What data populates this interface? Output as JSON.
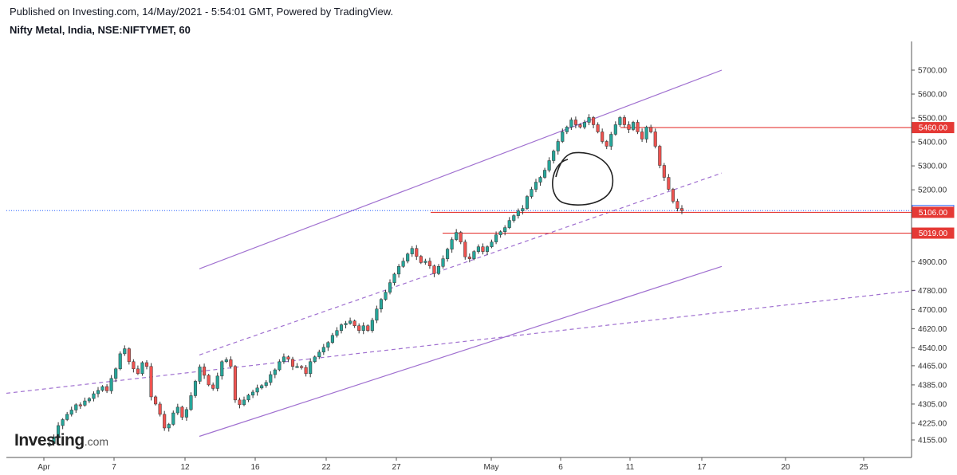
{
  "header": {
    "published": "Published on Investing.com, 14/May/2021 - 5:54:01 GMT, Powered by TradingView.",
    "symbol": "Nifty Metal, India, NSE:NIFTYMET, 60"
  },
  "logo": {
    "main": "Investing",
    "suffix": ".com"
  },
  "colors": {
    "up": "#26a69a",
    "down": "#ef5350",
    "channel": "#a070d0",
    "level": "#e53935",
    "last": "#2962ff"
  },
  "chart_data": {
    "type": "candlestick",
    "title": "Nifty Metal, India, NSE:NIFTYMET, 60",
    "x_ticks": [
      "Apr",
      "7",
      "12",
      "16",
      "22",
      "27",
      "May",
      "6",
      "11",
      "17",
      "20",
      "25"
    ],
    "y_ticks": [
      "5700.00",
      "5600.00",
      "5500.00",
      "5400.00",
      "5300.00",
      "5200.00",
      "4900.00",
      "4780.00",
      "4700.00",
      "4620.00",
      "4540.00",
      "4465.00",
      "4385.00",
      "4305.00",
      "4225.00",
      "4155.00"
    ],
    "price_tags": [
      {
        "label": "5460.00",
        "value": 5460,
        "kind": "level"
      },
      {
        "label": "5113.05",
        "value": 5113,
        "kind": "last"
      },
      {
        "label": "5106.00",
        "value": 5106,
        "kind": "level"
      },
      {
        "label": "5019.00",
        "value": 5019,
        "kind": "level"
      }
    ],
    "ohlc_path": [
      4140,
      4168,
      4215,
      4240,
      4262,
      4280,
      4302,
      4300,
      4318,
      4328,
      4348,
      4362,
      4378,
      4360,
      4412,
      4452,
      4515,
      4536,
      4482,
      4452,
      4432,
      4478,
      4462,
      4335,
      4305,
      4262,
      4205,
      4220,
      4268,
      4292,
      4250,
      4282,
      4340,
      4400,
      4460,
      4425,
      4385,
      4370,
      4422,
      4482,
      4490,
      4462,
      4322,
      4302,
      4322,
      4342,
      4355,
      4372,
      4382,
      4395,
      4428,
      4448,
      4482,
      4502,
      4492,
      4462,
      4462,
      4458,
      4432,
      4482,
      4502,
      4522,
      4542,
      4562,
      4592,
      4612,
      4636,
      4642,
      4652,
      4632,
      4612,
      4632,
      4612,
      4655,
      4702,
      4742,
      4772,
      4812,
      4848,
      4880,
      4902,
      4932,
      4955,
      4922,
      4896,
      4902,
      4882,
      4850,
      4880,
      4912,
      4952,
      4992,
      5022,
      4982,
      4920,
      4912,
      4942,
      4962,
      4942,
      4962,
      4982,
      5012,
      5025,
      5042,
      5072,
      5092,
      5112,
      5122,
      5172,
      5202,
      5232,
      5252,
      5282,
      5322,
      5362,
      5402,
      5442,
      5462,
      5492,
      5472,
      5462,
      5482,
      5502,
      5472,
      5442,
      5402,
      5382,
      5432,
      5472,
      5502,
      5472,
      5452,
      5482,
      5442,
      5412,
      5462,
      5442,
      5382,
      5302,
      5252,
      5202,
      5152,
      5122,
      5113
    ],
    "trendlines": [
      {
        "name": "upper channel",
        "style": "solid",
        "from": [
          "12 Apr",
          4870
        ],
        "to": [
          "17 May",
          5700
        ]
      },
      {
        "name": "lower channel",
        "style": "solid",
        "from": [
          "12 Apr",
          4170
        ],
        "to": [
          "17 May",
          4880
        ]
      },
      {
        "name": "mid channel",
        "style": "dashed",
        "from": [
          "12 Apr",
          4510
        ],
        "to": [
          "17 May",
          5270
        ]
      },
      {
        "name": "long-term support",
        "style": "dashed",
        "from": [
          "1 Apr",
          4350
        ],
        "to": [
          "27 May",
          4780
        ]
      }
    ],
    "horizontal_levels": [
      5460,
      5106,
      5019
    ],
    "last_price": 5113.05
  }
}
